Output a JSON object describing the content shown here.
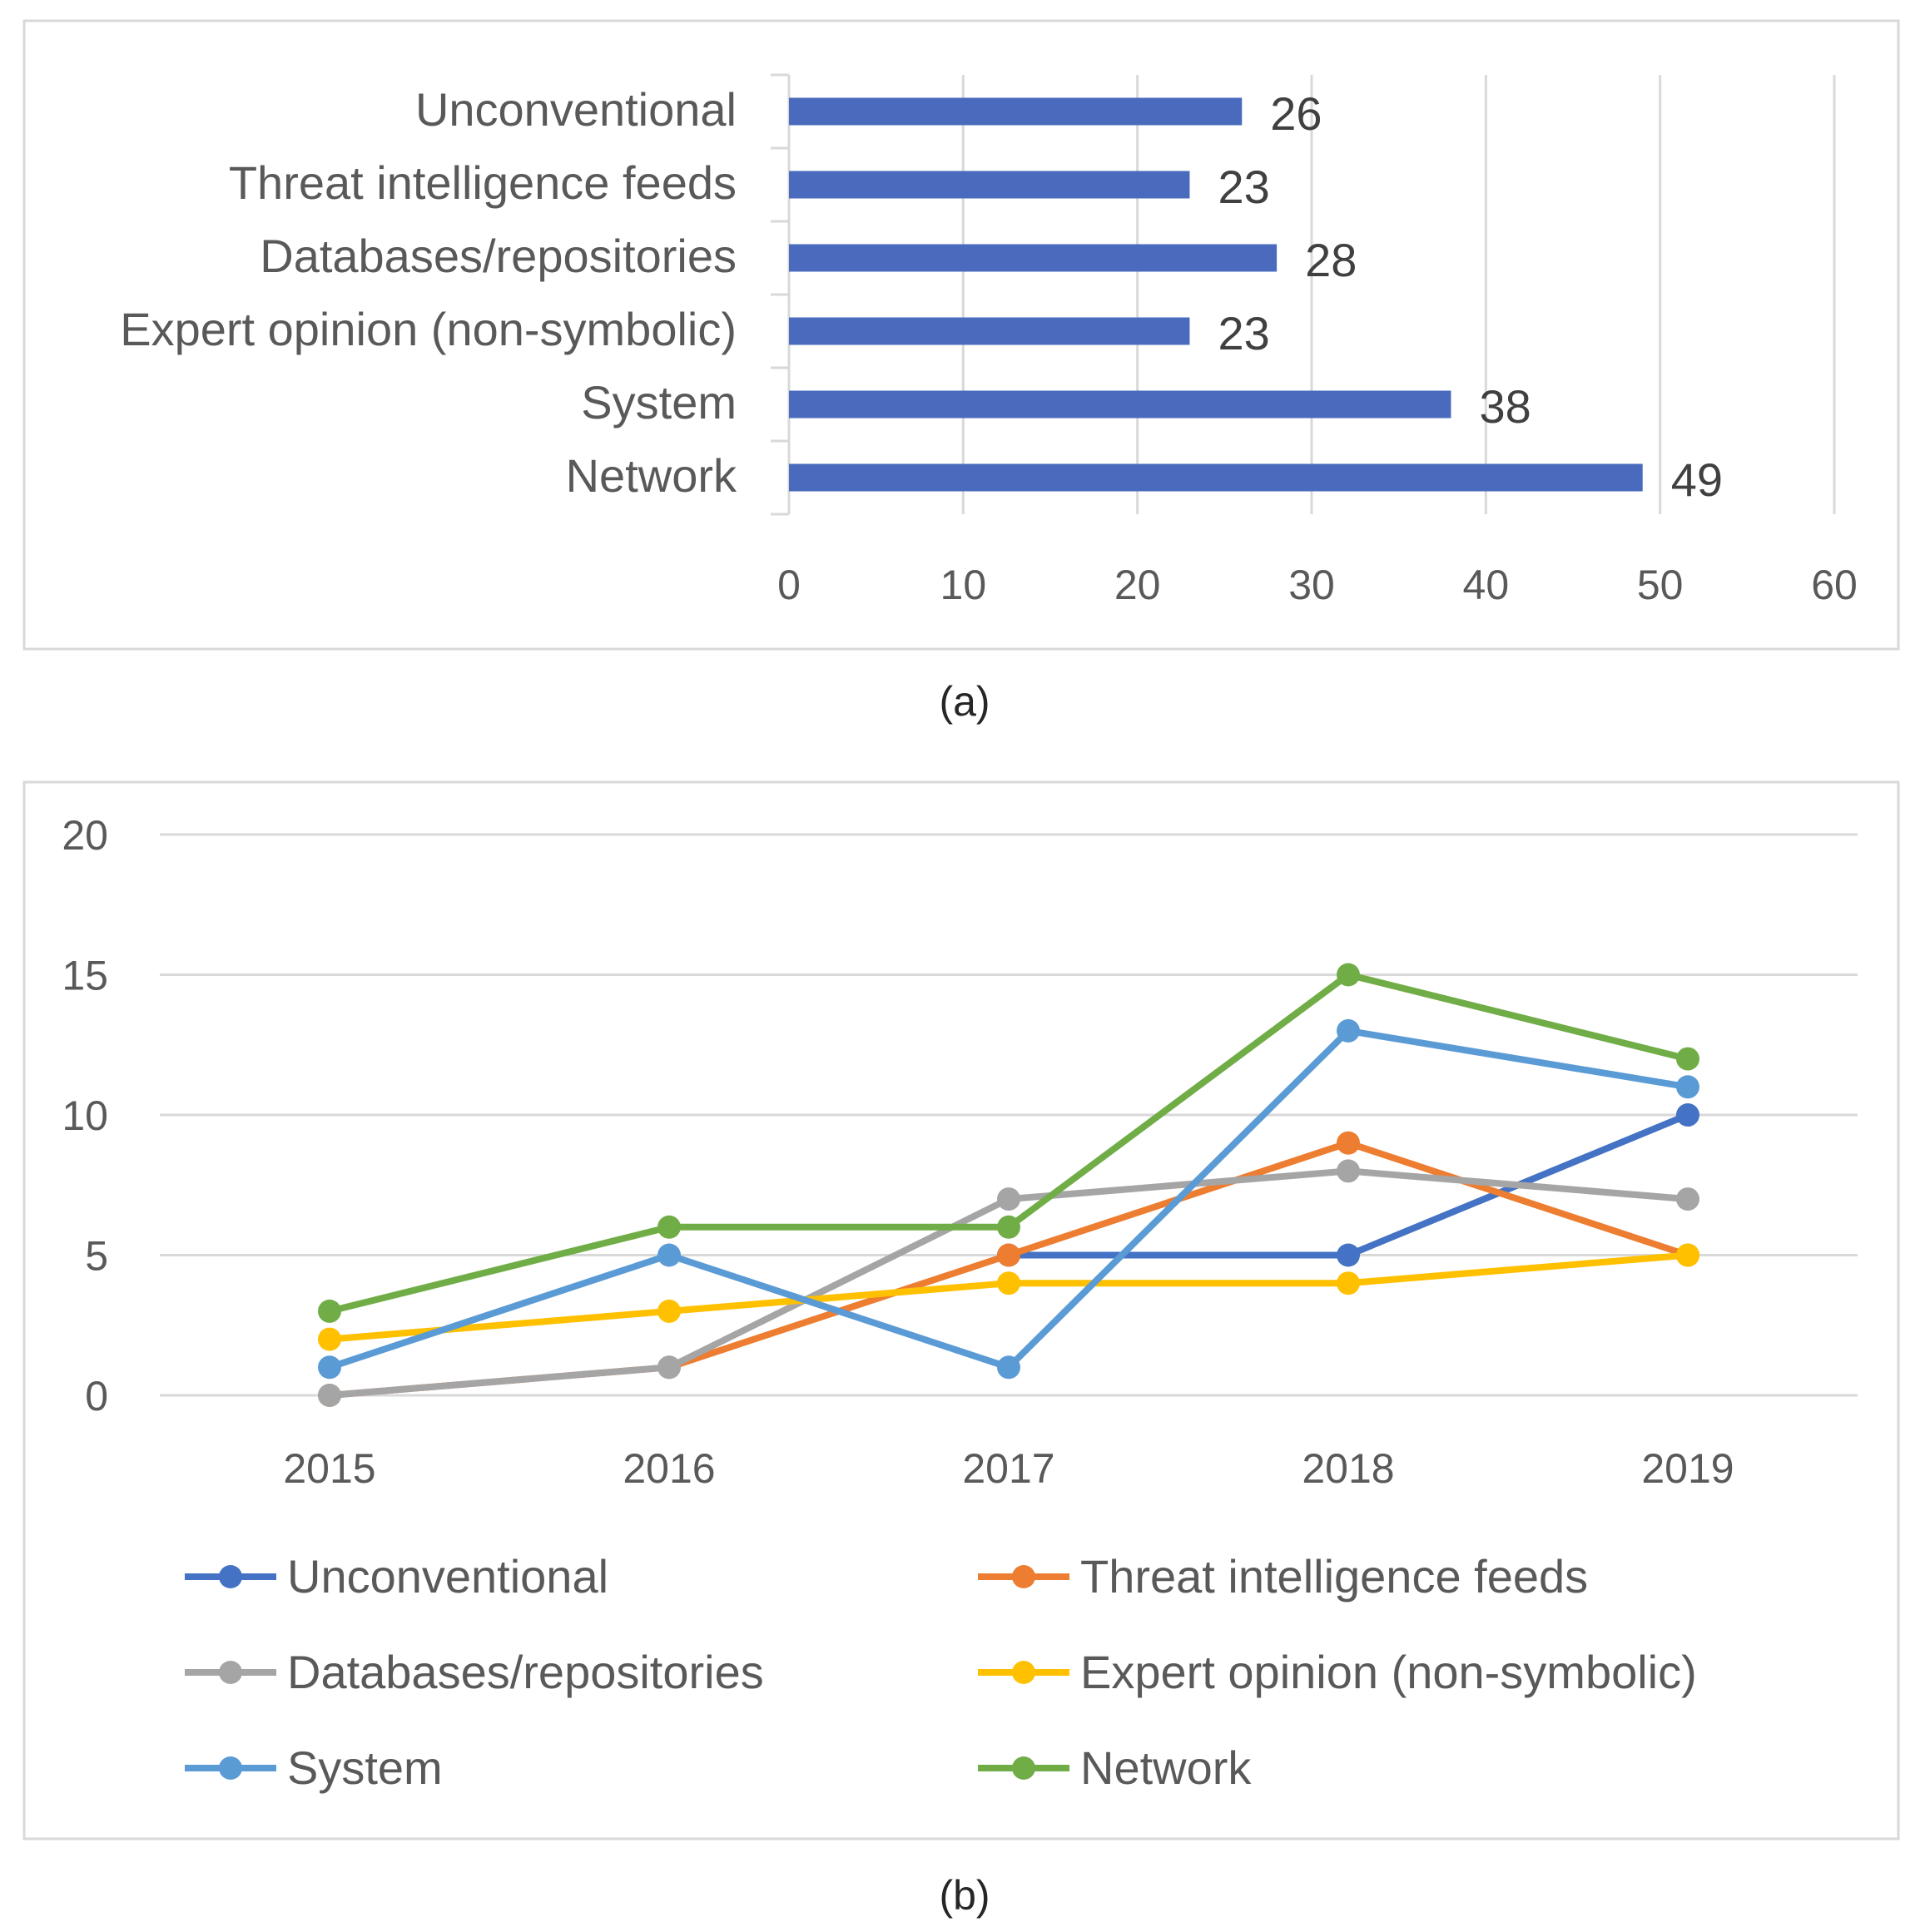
{
  "chart_data": [
    {
      "type": "bar",
      "orientation": "horizontal",
      "caption": "(a)",
      "categories": [
        "Unconventional",
        "Threat intelligence feeds",
        "Databases/repositories",
        "Expert opinion (non-symbolic)",
        "System",
        "Network"
      ],
      "values": [
        26,
        23,
        28,
        23,
        38,
        49
      ],
      "value_labels": [
        "26",
        "23",
        "28",
        "23",
        "38",
        "49"
      ],
      "x_ticks": [
        "0",
        "10",
        "20",
        "30",
        "40",
        "50",
        "60"
      ],
      "xlim": [
        0,
        60
      ],
      "grid": true,
      "bar_color": "#4a6bbd"
    },
    {
      "type": "line",
      "caption": "(b)",
      "categories": [
        "2015",
        "2016",
        "2017",
        "2018",
        "2019"
      ],
      "y_ticks": [
        "0",
        "5",
        "10",
        "15",
        "20"
      ],
      "ylim": [
        0,
        20
      ],
      "grid": true,
      "legend_position": "bottom",
      "series": [
        {
          "name": "Unconventional",
          "color": "#4472c4",
          "values": [
            null,
            null,
            5,
            5,
            10
          ]
        },
        {
          "name": "Threat intelligence feeds",
          "color": "#ed7d31",
          "values": [
            0,
            1,
            5,
            9,
            5
          ]
        },
        {
          "name": "Databases/repositories",
          "color": "#a5a5a5",
          "values": [
            0,
            1,
            7,
            8,
            7
          ]
        },
        {
          "name": "Expert opinion (non-symbolic)",
          "color": "#ffc000",
          "values": [
            2,
            3,
            4,
            4,
            5
          ]
        },
        {
          "name": "System",
          "color": "#5b9bd5",
          "values": [
            1,
            5,
            1,
            13,
            11
          ]
        },
        {
          "name": "Network",
          "color": "#70ad47",
          "values": [
            3,
            6,
            6,
            15,
            12
          ]
        }
      ]
    }
  ]
}
